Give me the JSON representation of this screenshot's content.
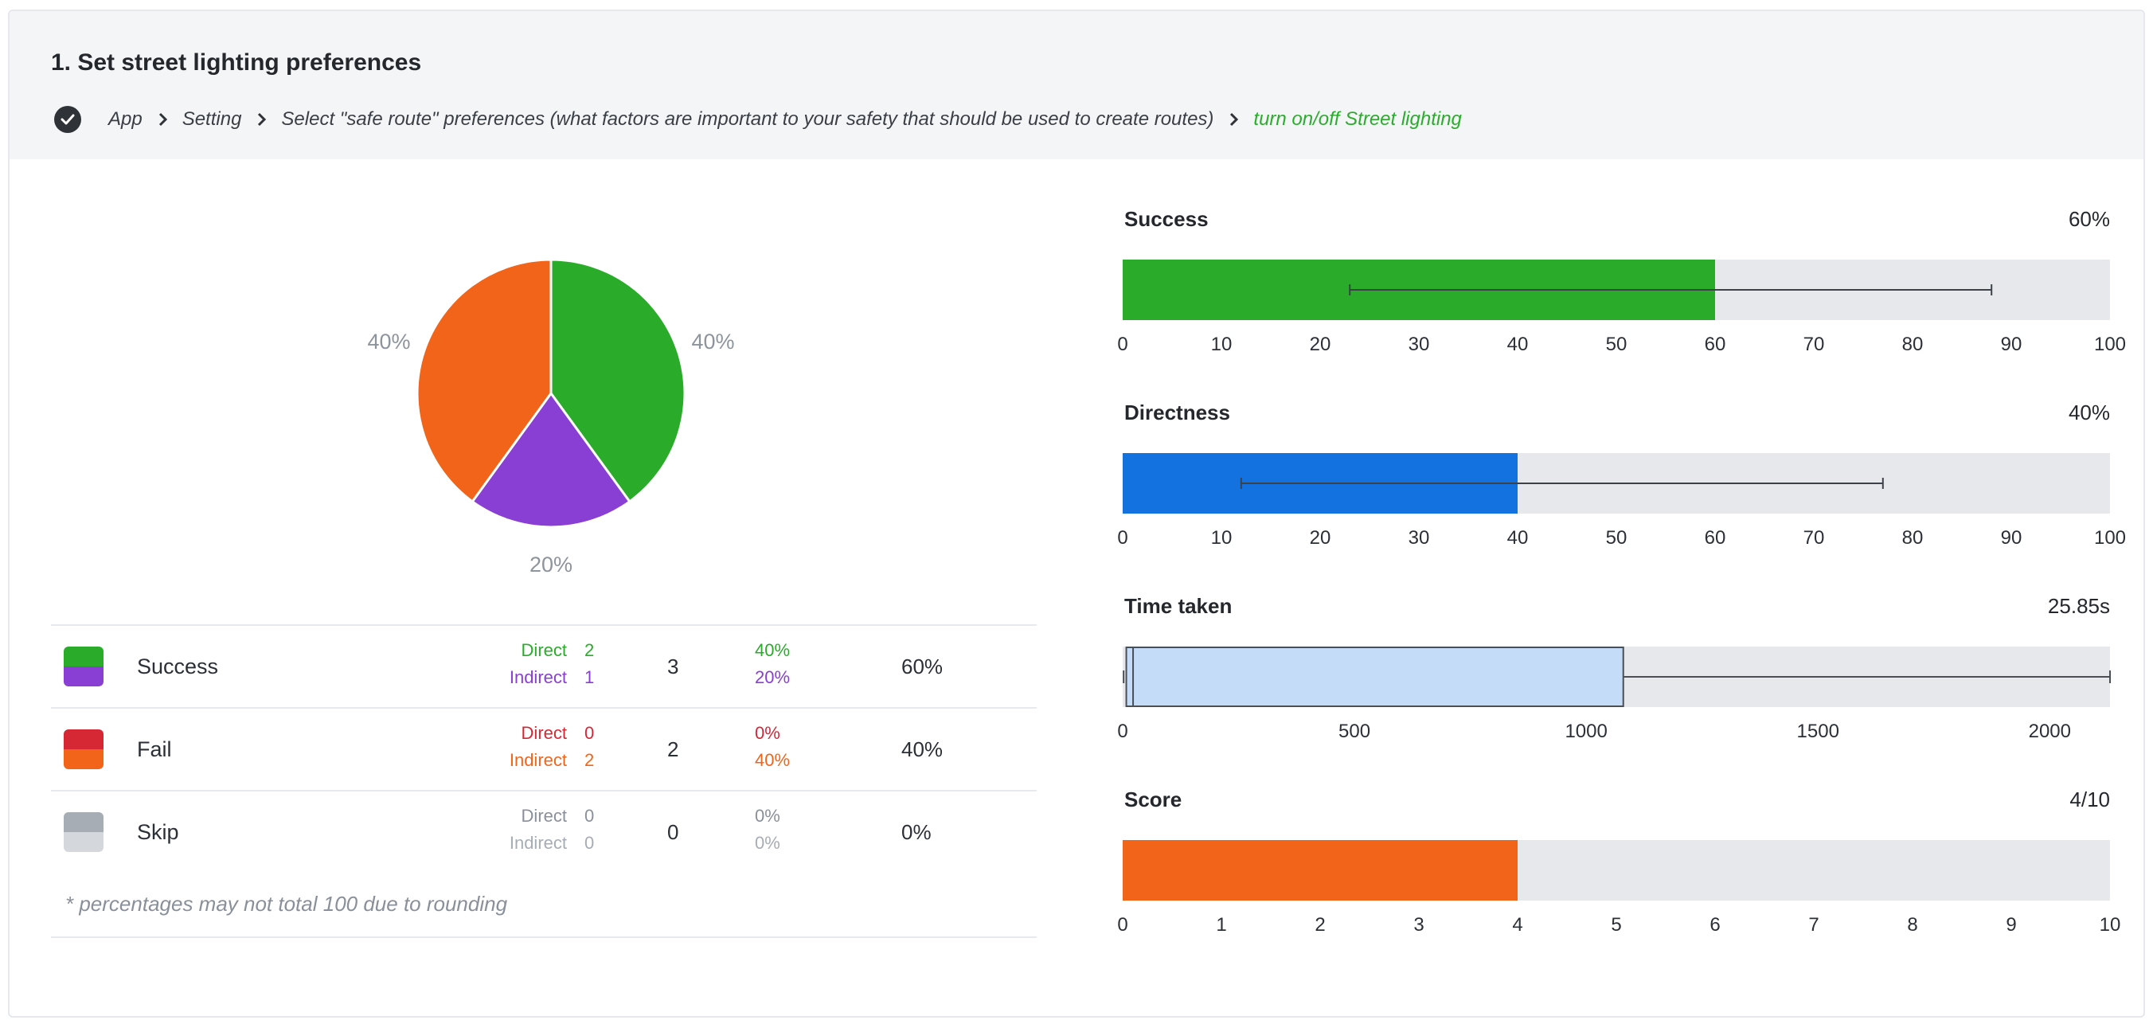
{
  "header": {
    "title": "1. Set street lighting preferences",
    "breadcrumb": [
      "App",
      "Setting",
      "Select \"safe route\" preferences (what factors are important to your safety that should be used to create routes)",
      "turn on/off Street lighting"
    ]
  },
  "colors": {
    "success_direct": "#2aac2a",
    "success_indirect": "#8a3fd4",
    "fail_direct": "#d62735",
    "fail_indirect": "#f26419",
    "skip_direct": "#a6adb4",
    "skip_indirect": "#d4d8dc",
    "directness_blue": "#1471e0",
    "time_fill": "#c4dcf7",
    "track": "#e6e8eb"
  },
  "pie": {
    "labels": [
      "40%",
      "20%",
      "40%"
    ]
  },
  "legend": {
    "rows": [
      {
        "label": "Success",
        "direct_key": "Direct",
        "indirect_key": "Indirect",
        "direct_count": "2",
        "indirect_count": "1",
        "total": "3",
        "direct_pct": "40%",
        "indirect_pct": "20%",
        "overall": "60%"
      },
      {
        "label": "Fail",
        "direct_key": "Direct",
        "indirect_key": "Indirect",
        "direct_count": "0",
        "indirect_count": "2",
        "total": "2",
        "direct_pct": "0%",
        "indirect_pct": "40%",
        "overall": "40%"
      },
      {
        "label": "Skip",
        "direct_key": "Direct",
        "indirect_key": "Indirect",
        "direct_count": "0",
        "indirect_count": "0",
        "total": "0",
        "direct_pct": "0%",
        "indirect_pct": "0%",
        "overall": "0%"
      }
    ],
    "note": "* percentages may not total 100 due to rounding"
  },
  "metrics": {
    "success": {
      "name": "Success",
      "value": "60%"
    },
    "directness": {
      "name": "Directness",
      "value": "40%"
    },
    "time": {
      "name": "Time taken",
      "value": "25.85s"
    },
    "score": {
      "name": "Score",
      "value": "4/10"
    }
  },
  "chart_data": [
    {
      "type": "pie",
      "title": "",
      "slices": [
        {
          "name": "Success direct",
          "value": 40,
          "label": "40%",
          "color": "#2aac2a"
        },
        {
          "name": "Success indirect",
          "value": 20,
          "label": "20%",
          "color": "#8a3fd4"
        },
        {
          "name": "Fail indirect",
          "value": 40,
          "label": "40%",
          "color": "#f26419"
        }
      ]
    },
    {
      "type": "bar",
      "title": "Success",
      "value": 60,
      "error_range": [
        23,
        88
      ],
      "xlim": [
        0,
        100
      ],
      "ticks": [
        "0",
        "10",
        "20",
        "30",
        "40",
        "50",
        "60",
        "70",
        "80",
        "90",
        "100"
      ],
      "tick_values": [
        0,
        10,
        20,
        30,
        40,
        50,
        60,
        70,
        80,
        90,
        100
      ],
      "color": "#2aac2a"
    },
    {
      "type": "bar",
      "title": "Directness",
      "value": 40,
      "error_range": [
        12,
        77
      ],
      "xlim": [
        0,
        100
      ],
      "ticks": [
        "0",
        "10",
        "20",
        "30",
        "40",
        "50",
        "60",
        "70",
        "80",
        "90",
        "100"
      ],
      "tick_values": [
        0,
        10,
        20,
        30,
        40,
        50,
        60,
        70,
        80,
        90,
        100
      ],
      "color": "#1471e0"
    },
    {
      "type": "box",
      "title": "Time taken",
      "min": 2,
      "q1": 25,
      "median": 25.85,
      "q3": 1080,
      "max": 2130,
      "xlim": [
        0,
        2130
      ],
      "ticks": [
        "0",
        "500",
        "1000",
        "1500",
        "2000"
      ],
      "tick_values": [
        0,
        500,
        1000,
        1500,
        2000
      ],
      "color": "#c4dcf7"
    },
    {
      "type": "bar",
      "title": "Score",
      "value": 4,
      "xlim": [
        0,
        10
      ],
      "ticks": [
        "0",
        "1",
        "2",
        "3",
        "4",
        "5",
        "6",
        "7",
        "8",
        "9",
        "10"
      ],
      "tick_values": [
        0,
        1,
        2,
        3,
        4,
        5,
        6,
        7,
        8,
        9,
        10
      ],
      "color": "#f26419"
    }
  ]
}
